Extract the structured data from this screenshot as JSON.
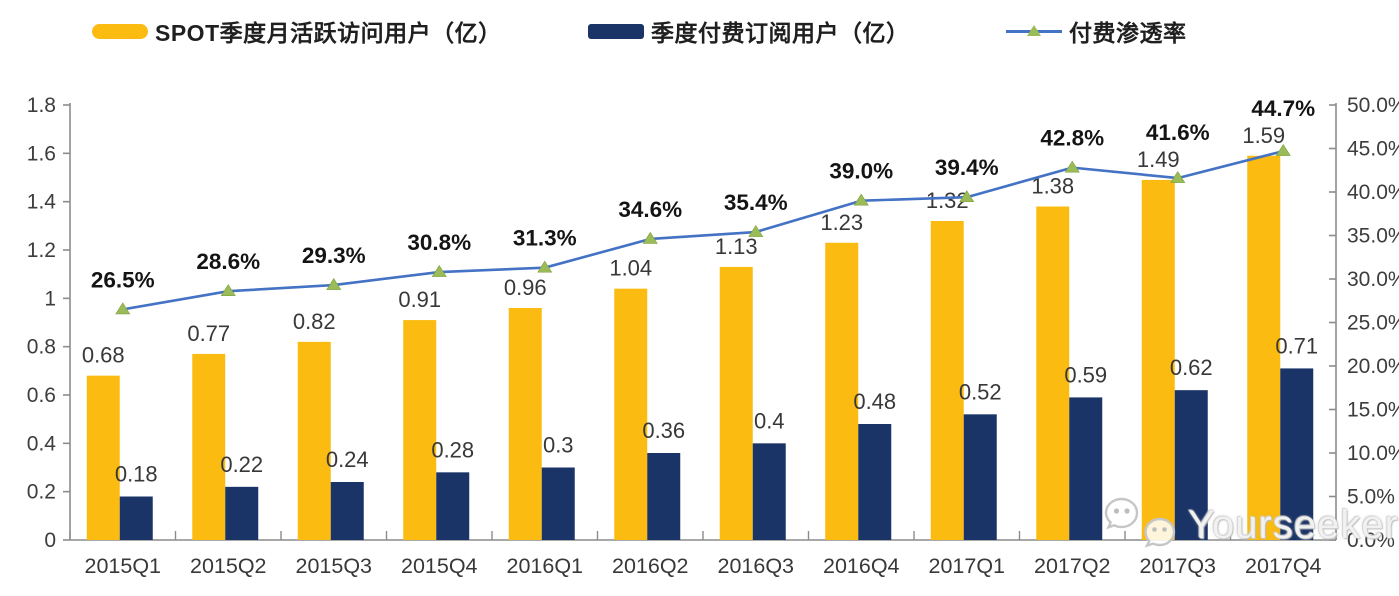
{
  "legend": {
    "items": [
      {
        "label": "SPOT季度月活跃访问用户（亿）"
      },
      {
        "label": "季度付费订阅用户（亿）"
      },
      {
        "label": "付费渗透率"
      }
    ]
  },
  "colors": {
    "mau_bar": "#FBBB10",
    "subs_bar": "#1A3468",
    "line": "#4472C4",
    "marker": "#9BBB59",
    "axis": "#8C8C8C",
    "tick_text": "#3D3D3D",
    "value_text": "#383838",
    "pct_text": "#141414"
  },
  "chart_data": {
    "type": "combo bar+line",
    "title": "",
    "categories": [
      "2015Q1",
      "2015Q2",
      "2015Q3",
      "2015Q4",
      "2016Q1",
      "2016Q2",
      "2016Q3",
      "2016Q4",
      "2017Q1",
      "2017Q2",
      "2017Q3",
      "2017Q4"
    ],
    "series": [
      {
        "name": "SPOT季度月活跃访问用户（亿）",
        "type": "bar",
        "axis": "left",
        "values": [
          0.68,
          0.77,
          0.82,
          0.91,
          0.96,
          1.04,
          1.13,
          1.23,
          1.32,
          1.38,
          1.49,
          1.59
        ],
        "labels": [
          "0.68",
          "0.77",
          "0.82",
          "0.91",
          "0.96",
          "1.04",
          "1.13",
          "1.23",
          "1.32",
          "1.38",
          "1.49",
          "1.59"
        ]
      },
      {
        "name": "季度付费订阅用户（亿）",
        "type": "bar",
        "axis": "left",
        "values": [
          0.18,
          0.22,
          0.24,
          0.28,
          0.3,
          0.36,
          0.4,
          0.48,
          0.52,
          0.59,
          0.62,
          0.71
        ],
        "labels": [
          "0.18",
          "0.22",
          "0.24",
          "0.28",
          "0.3",
          "0.36",
          "0.4",
          "0.48",
          "0.52",
          "0.59",
          "0.62",
          "0.71"
        ]
      },
      {
        "name": "付费渗透率",
        "type": "line",
        "axis": "right",
        "values": [
          26.5,
          28.6,
          29.3,
          30.8,
          31.3,
          34.6,
          35.4,
          39.0,
          39.4,
          42.8,
          41.6,
          44.7
        ],
        "labels": [
          "26.5%",
          "28.6%",
          "29.3%",
          "30.8%",
          "31.3%",
          "34.6%",
          "35.4%",
          "39.0%",
          "39.4%",
          "42.8%",
          "41.6%",
          "44.7%"
        ]
      }
    ],
    "left_axis": {
      "min": 0,
      "max": 1.8,
      "step": 0.2,
      "tick_labels": [
        "0",
        "0.2",
        "0.4",
        "0.6",
        "0.8",
        "1",
        "1.2",
        "1.4",
        "1.6",
        "1.8"
      ]
    },
    "right_axis": {
      "min": 0,
      "max": 50,
      "step": 5,
      "tick_labels": [
        "0.0%",
        "5.0%",
        "10.0%",
        "15.0%",
        "20.0%",
        "25.0%",
        "30.0%",
        "35.0%",
        "40.0%",
        "45.0%",
        "50.0%"
      ]
    },
    "grid": false,
    "legend_position": "top"
  },
  "watermark": {
    "text": "Yourseeker",
    "icon": "wechat-icon"
  }
}
